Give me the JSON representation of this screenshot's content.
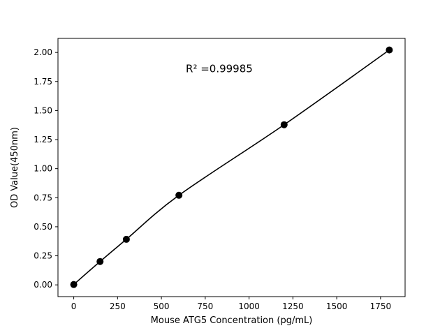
{
  "figure": {
    "background": "#ffffff"
  },
  "chart_data": {
    "type": "scatter",
    "title": "",
    "xlabel": "Mouse ATG5 Concentration (pg/mL)",
    "ylabel": "OD Value(450nm)",
    "x": [
      0,
      150,
      300,
      600,
      1200,
      1800
    ],
    "y": [
      0.003,
      0.201,
      0.392,
      0.771,
      1.378,
      2.021
    ],
    "xlim": [
      -90,
      1890
    ],
    "ylim": [
      -0.101,
      2.121
    ],
    "xticks": [
      0,
      250,
      500,
      750,
      1000,
      1250,
      1500,
      1750
    ],
    "yticks": [
      0.0,
      0.25,
      0.5,
      0.75,
      1.0,
      1.25,
      1.5,
      1.75,
      2.0
    ],
    "ytick_decimals": 2,
    "grid": false,
    "legend_position": "none",
    "marker_color": "#000000",
    "line_color": "#000000",
    "frame_color": "#000000",
    "annotation": {
      "text": "R² =0.99985",
      "x": 830,
      "y": 1.83
    },
    "fit": "smooth-curve-through-points"
  }
}
